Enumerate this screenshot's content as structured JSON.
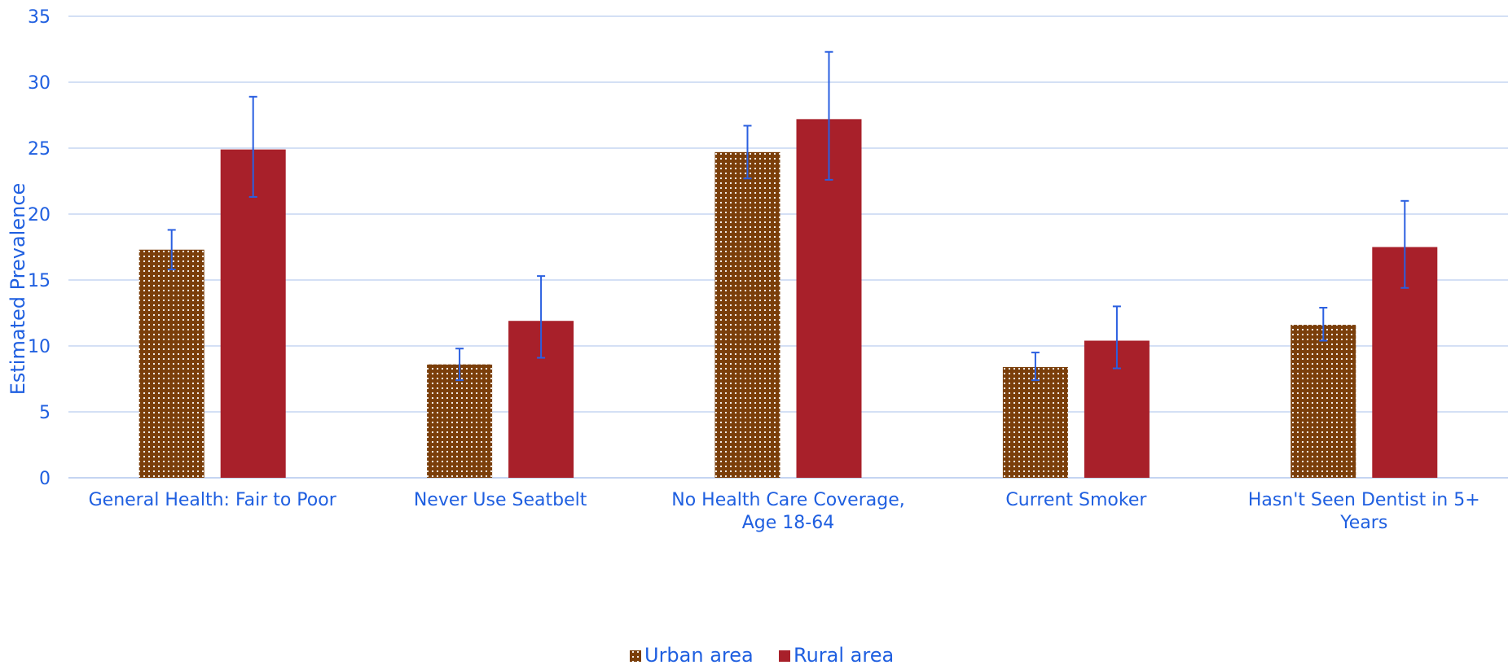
{
  "chart_data": {
    "type": "bar",
    "title": "",
    "xlabel": "",
    "ylabel": "Estimated Prevalence",
    "ylim": [
      0,
      35
    ],
    "yticks": [
      0,
      5,
      10,
      15,
      20,
      25,
      30,
      35
    ],
    "grid": true,
    "legend_position": "bottom-center",
    "categories": [
      [
        "General Health: Fair to Poor"
      ],
      [
        "Never Use Seatbelt"
      ],
      [
        "No Health Care Coverage,",
        "Age 18-64"
      ],
      [
        "Current Smoker"
      ],
      [
        "Hasn't Seen Dentist in 5+",
        "Years"
      ]
    ],
    "series": [
      {
        "name": "Urban area",
        "color": "#7a3e0a",
        "pattern": "white-dots",
        "values": [
          17.3,
          8.6,
          24.7,
          8.4,
          11.6
        ],
        "error_low": [
          15.8,
          7.4,
          22.7,
          7.4,
          10.4
        ],
        "error_high": [
          18.8,
          9.8,
          26.7,
          9.5,
          12.9
        ]
      },
      {
        "name": "Rural area",
        "color": "#a8202a",
        "pattern": "solid",
        "values": [
          24.9,
          11.9,
          27.2,
          10.4,
          17.5
        ],
        "error_low": [
          21.3,
          9.1,
          22.6,
          8.3,
          14.4
        ],
        "error_high": [
          28.9,
          15.3,
          32.3,
          13.0,
          21.0
        ]
      }
    ]
  }
}
